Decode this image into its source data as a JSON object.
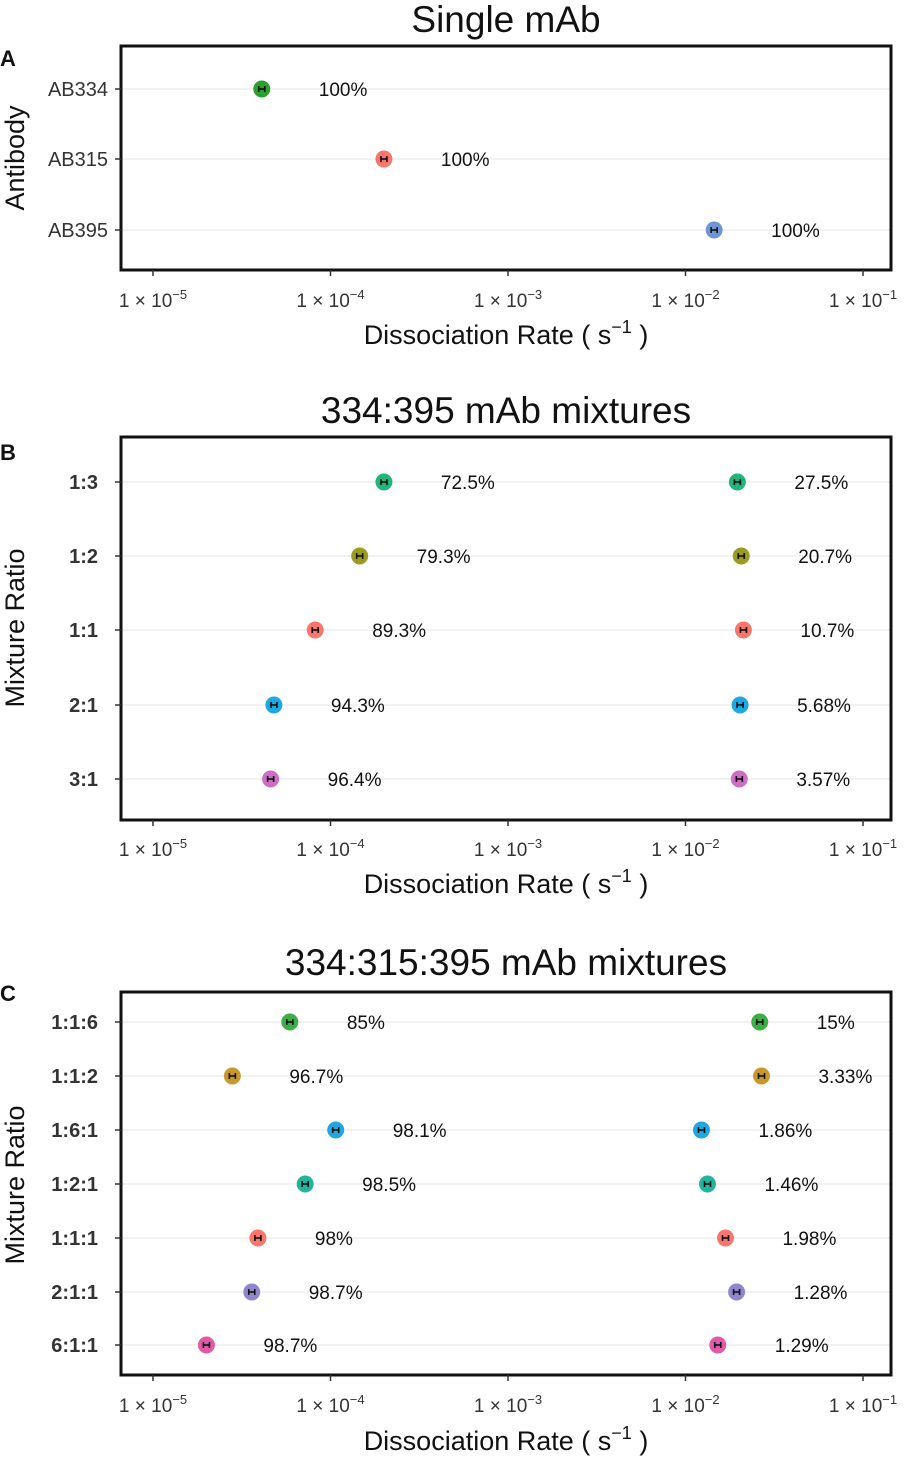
{
  "chart_data": [
    {
      "panel": "A",
      "type": "scatter",
      "title": "Single mAb",
      "ylabel": "Antibody",
      "xlabel": "Dissociation Rate ( s",
      "xlabel_exponent": "−1",
      "xlabel_suffix": " )",
      "xscale": "log",
      "xlim": [
        4.5e-06,
        0.16
      ],
      "xticks": [
        {
          "value": 1e-05,
          "base": "1 × 10",
          "exp": "−5"
        },
        {
          "value": 0.0001,
          "base": "1 × 10",
          "exp": "−4"
        },
        {
          "value": 0.001,
          "base": "1 × 10",
          "exp": "−3"
        },
        {
          "value": 0.01,
          "base": "1 × 10",
          "exp": "−2"
        },
        {
          "value": 0.1,
          "base": "1 × 10",
          "exp": "−1"
        }
      ],
      "categories": [
        "AB334",
        "AB315",
        "AB395"
      ],
      "points": [
        {
          "category": "AB334",
          "x": 4.1e-05,
          "label": "100%",
          "color": "#2ca02c"
        },
        {
          "category": "AB315",
          "x": 0.0002,
          "label": "100%",
          "color": "#f8766d"
        },
        {
          "category": "AB395",
          "x": 0.0145,
          "label": "100%",
          "color": "#6f95d4"
        }
      ]
    },
    {
      "panel": "B",
      "type": "scatter",
      "title": "334:395 mAb mixtures",
      "ylabel": "Mixture Ratio",
      "xlabel": "Dissociation Rate ( s",
      "xlabel_exponent": "−1",
      "xlabel_suffix": " )",
      "xscale": "log",
      "xlim": [
        4.5e-06,
        0.16
      ],
      "xticks": [
        {
          "value": 1e-05,
          "base": "1 × 10",
          "exp": "−5"
        },
        {
          "value": 0.0001,
          "base": "1 × 10",
          "exp": "−4"
        },
        {
          "value": 0.001,
          "base": "1 × 10",
          "exp": "−3"
        },
        {
          "value": 0.01,
          "base": "1 × 10",
          "exp": "−2"
        },
        {
          "value": 0.1,
          "base": "1 × 10",
          "exp": "−1"
        }
      ],
      "categories": [
        "1:3",
        "1:2",
        "1:1",
        "2:1",
        "3:1"
      ],
      "points": [
        {
          "category": "1:3",
          "x": 0.0002,
          "label": "72.5%",
          "color": "#21b57a"
        },
        {
          "category": "1:3",
          "x": 0.0196,
          "label": "27.5%",
          "color": "#21b57a"
        },
        {
          "category": "1:2",
          "x": 0.000146,
          "label": "79.3%",
          "color": "#9b9b1f"
        },
        {
          "category": "1:2",
          "x": 0.0206,
          "label": "20.7%",
          "color": "#9b9b1f"
        },
        {
          "category": "1:1",
          "x": 8.2e-05,
          "label": "89.3%",
          "color": "#f8766d"
        },
        {
          "category": "1:1",
          "x": 0.0212,
          "label": "10.7%",
          "color": "#f8766d"
        },
        {
          "category": "2:1",
          "x": 4.8e-05,
          "label": "94.3%",
          "color": "#1fa7e1"
        },
        {
          "category": "2:1",
          "x": 0.0203,
          "label": "5.68%",
          "color": "#1fa7e1"
        },
        {
          "category": "3:1",
          "x": 4.6e-05,
          "label": "96.4%",
          "color": "#cc6fc4"
        },
        {
          "category": "3:1",
          "x": 0.0201,
          "label": "3.57%",
          "color": "#cc6fc4"
        }
      ]
    },
    {
      "panel": "C",
      "type": "scatter",
      "title": "334:315:395 mAb mixtures",
      "ylabel": "Mixture Ratio",
      "xlabel": "Dissociation Rate ( s",
      "xlabel_exponent": "−1",
      "xlabel_suffix": " )",
      "xscale": "log",
      "xlim": [
        4.5e-06,
        0.16
      ],
      "xticks": [
        {
          "value": 1e-05,
          "base": "1 × 10",
          "exp": "−5"
        },
        {
          "value": 0.0001,
          "base": "1 × 10",
          "exp": "−4"
        },
        {
          "value": 0.001,
          "base": "1 × 10",
          "exp": "−3"
        },
        {
          "value": 0.01,
          "base": "1 × 10",
          "exp": "−2"
        },
        {
          "value": 0.1,
          "base": "1 × 10",
          "exp": "−1"
        }
      ],
      "categories": [
        "1:1:6",
        "1:1:2",
        "1:6:1",
        "1:2:1",
        "1:1:1",
        "2:1:1",
        "6:1:1"
      ],
      "points": [
        {
          "category": "1:1:6",
          "x": 5.9e-05,
          "label": "85%",
          "color": "#3cae45"
        },
        {
          "category": "1:1:6",
          "x": 0.0262,
          "label": "15%",
          "color": "#3cae45"
        },
        {
          "category": "1:1:2",
          "x": 2.8e-05,
          "label": "96.7%",
          "color": "#c9982a"
        },
        {
          "category": "1:1:2",
          "x": 0.0268,
          "label": "3.33%",
          "color": "#c9982a"
        },
        {
          "category": "1:6:1",
          "x": 0.000107,
          "label": "98.1%",
          "color": "#1fa7e1"
        },
        {
          "category": "1:6:1",
          "x": 0.0123,
          "label": "1.86%",
          "color": "#1fa7e1"
        },
        {
          "category": "1:2:1",
          "x": 7.2e-05,
          "label": "98.5%",
          "color": "#21b59b"
        },
        {
          "category": "1:2:1",
          "x": 0.0133,
          "label": "1.46%",
          "color": "#21b59b"
        },
        {
          "category": "1:1:1",
          "x": 3.9e-05,
          "label": "98%",
          "color": "#f8766d"
        },
        {
          "category": "1:1:1",
          "x": 0.0168,
          "label": "1.98%",
          "color": "#f8766d"
        },
        {
          "category": "2:1:1",
          "x": 3.6e-05,
          "label": "98.7%",
          "color": "#8f86d0"
        },
        {
          "category": "2:1:1",
          "x": 0.0194,
          "label": "1.28%",
          "color": "#8f86d0"
        },
        {
          "category": "6:1:1",
          "x": 2e-05,
          "label": "98.7%",
          "color": "#e05aa8"
        },
        {
          "category": "6:1:1",
          "x": 0.0152,
          "label": "1.29%",
          "color": "#e05aa8"
        }
      ]
    }
  ]
}
